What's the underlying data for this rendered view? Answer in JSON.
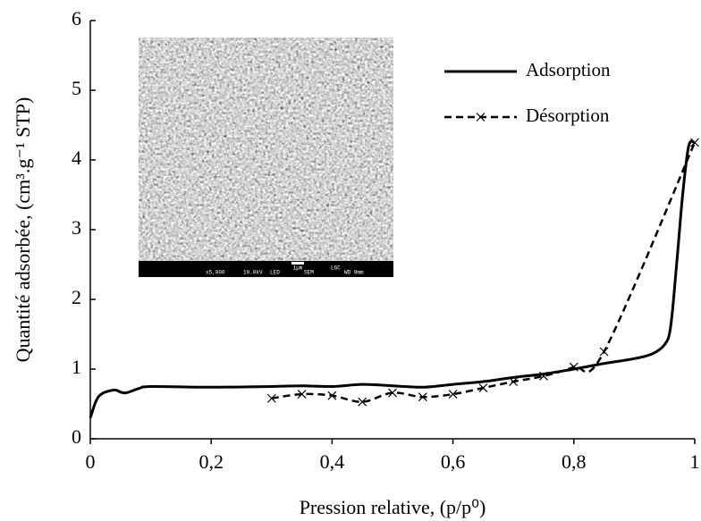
{
  "chart_data": {
    "type": "line",
    "xlabel": "Pression relative, (p/p⁰)",
    "ylabel": "Quantité adsorbée, (cm³.g⁻¹ STP)",
    "xlim": [
      0,
      1
    ],
    "ylim": [
      0,
      6
    ],
    "xticks": [
      0,
      {
        "value": 0.2,
        "label": "0,2"
      },
      {
        "value": 0.4,
        "label": "0,4"
      },
      {
        "value": 0.6,
        "label": "0,6"
      },
      {
        "value": 0.8,
        "label": "0,8"
      },
      1
    ],
    "yticks": [
      0,
      1,
      2,
      3,
      4,
      5,
      6
    ],
    "legend": "top-right",
    "inset_labels": [
      "1µm",
      "LGC",
      "x5,000",
      "10.0kV",
      "LED",
      "SEM",
      "WD 9mm"
    ],
    "series": [
      {
        "name": "Adsorption",
        "color": "#000000",
        "style": "solid",
        "x": [
          0,
          0.01,
          0.02,
          0.04,
          0.05,
          0.06,
          0.08,
          0.1,
          0.2,
          0.3,
          0.35,
          0.4,
          0.45,
          0.5,
          0.55,
          0.6,
          0.65,
          0.7,
          0.75,
          0.8,
          0.85,
          0.9,
          0.93,
          0.95,
          0.96,
          0.97,
          0.98,
          0.99,
          1
        ],
        "values": [
          0.3,
          0.55,
          0.65,
          0.7,
          0.67,
          0.66,
          0.72,
          0.75,
          0.74,
          0.75,
          0.76,
          0.75,
          0.78,
          0.76,
          0.74,
          0.78,
          0.82,
          0.88,
          0.93,
          1.0,
          1.08,
          1.15,
          1.22,
          1.35,
          1.6,
          2.5,
          3.5,
          4.2,
          4.25
        ]
      },
      {
        "name": "Désorption",
        "color": "#000000",
        "style": "dashed",
        "marker": "x",
        "x": [
          0.3,
          0.35,
          0.4,
          0.45,
          0.5,
          0.55,
          0.6,
          0.65,
          0.7,
          0.75,
          0.8,
          0.85,
          1
        ],
        "values": [
          0.58,
          0.64,
          0.62,
          0.53,
          0.66,
          0.6,
          0.64,
          0.73,
          0.82,
          0.9,
          1.03,
          1.25,
          4.25
        ]
      }
    ]
  }
}
